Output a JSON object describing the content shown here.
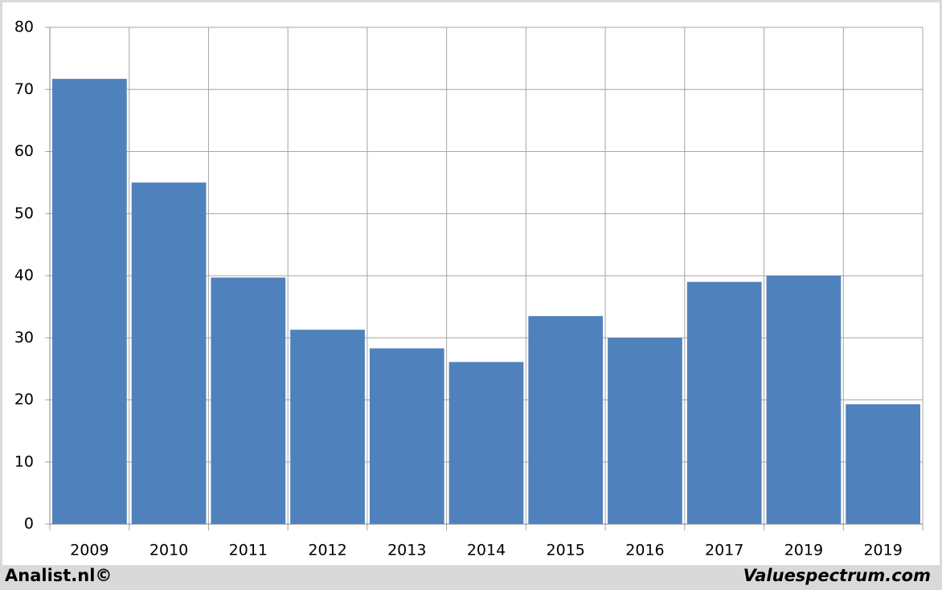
{
  "chart_data": {
    "type": "bar",
    "categories": [
      "2009",
      "2010",
      "2011",
      "2012",
      "2013",
      "2014",
      "2015",
      "2016",
      "2017",
      "2019",
      "2019"
    ],
    "values": [
      71.7,
      55.0,
      39.7,
      31.3,
      28.3,
      26.1,
      33.5,
      30.0,
      39.0,
      40.0,
      19.3
    ],
    "color": "#4f81bd",
    "ylim": [
      0,
      80
    ],
    "yticks": [
      0,
      10,
      20,
      30,
      40,
      50,
      60,
      70,
      80
    ],
    "grid": true,
    "footer_left": "Analist.nl©",
    "footer_right": "Valuespectrum.com"
  }
}
